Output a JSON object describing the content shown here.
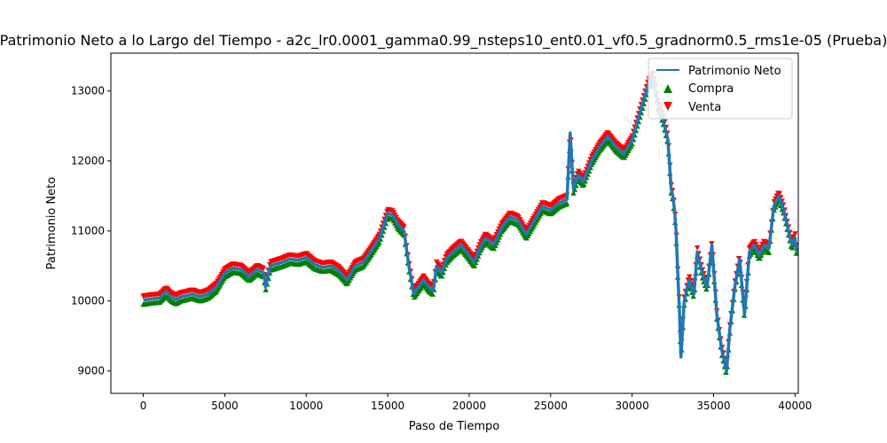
{
  "chart_data": {
    "type": "line",
    "title": "Patrimonio Neto a lo Largo del Tiempo - a2c_lr0.0001_gamma0.99_nsteps10_ent0.01_vf0.5_gradnorm0.5_rms1e-05 (Prueba)",
    "xlabel": "Paso de Tiempo",
    "ylabel": "Patrimonio Neto",
    "xlim": [
      -1990,
      40200
    ],
    "ylim": [
      8680,
      13540
    ],
    "xticks": [
      "0",
      "5000",
      "10000",
      "15000",
      "20000",
      "25000",
      "30000",
      "35000",
      "40000"
    ],
    "yticks": [
      "9000",
      "10000",
      "11000",
      "12000",
      "13000"
    ],
    "legend": {
      "position": "top-right",
      "entries": [
        {
          "label": "Patrimonio Neto",
          "marker": "line",
          "color": "#1f77b4"
        },
        {
          "label": "Compra",
          "marker": "triangle-up",
          "color": "#008000"
        },
        {
          "label": "Venta",
          "marker": "triangle-down",
          "color": "#ff0000"
        }
      ]
    },
    "series": [
      {
        "name": "Patrimonio Neto",
        "color": "#1f77b4",
        "x": [
          0,
          500,
          1000,
          1400,
          1700,
          2000,
          2300,
          2700,
          3000,
          3500,
          4000,
          4500,
          5000,
          5500,
          6000,
          6500,
          7000,
          7400,
          7500,
          7600,
          7800,
          8500,
          9000,
          9500,
          10000,
          10500,
          11000,
          11500,
          12000,
          12500,
          13000,
          13500,
          14000,
          14500,
          15000,
          15300,
          15600,
          16000,
          16300,
          16600,
          16900,
          17200,
          17500,
          17800,
          18000,
          18300,
          18600,
          19000,
          19500,
          20000,
          20300,
          20700,
          21000,
          21500,
          22000,
          22500,
          23000,
          23500,
          24000,
          24500,
          25000,
          25500,
          26000,
          26200,
          26400,
          26700,
          27000,
          27500,
          28000,
          28500,
          29000,
          29500,
          30000,
          30500,
          31000,
          31300,
          31600,
          31900,
          32200,
          32400,
          32500,
          32600,
          32700,
          32800,
          32900,
          33000,
          33200,
          33500,
          33800,
          34000,
          34300,
          34600,
          34900,
          35200,
          35500,
          35800,
          36000,
          36300,
          36600,
          36900,
          37200,
          37500,
          37800,
          38100,
          38400,
          38700,
          39000,
          39300,
          39600,
          39800,
          40000,
          40100
        ],
        "values": [
          10010,
          10030,
          10040,
          10130,
          10060,
          10020,
          10060,
          10080,
          10100,
          10060,
          10100,
          10200,
          10400,
          10470,
          10450,
          10350,
          10450,
          10400,
          10200,
          10300,
          10500,
          10550,
          10600,
          10580,
          10620,
          10520,
          10480,
          10500,
          10430,
          10300,
          10500,
          10550,
          10720,
          10900,
          11250,
          11230,
          11100,
          11000,
          10500,
          10100,
          10200,
          10300,
          10200,
          10150,
          10500,
          10400,
          10600,
          10700,
          10800,
          10650,
          10550,
          10780,
          10900,
          10800,
          11050,
          11200,
          11150,
          10950,
          11150,
          11350,
          11300,
          11400,
          11450,
          12400,
          11600,
          11800,
          11700,
          12000,
          12200,
          12350,
          12200,
          12100,
          12300,
          12700,
          13100,
          13200,
          12800,
          12600,
          12300,
          11600,
          11500,
          11300,
          11000,
          10400,
          9900,
          9200,
          10000,
          10300,
          10100,
          10700,
          10400,
          10200,
          10800,
          9800,
          9300,
          9000,
          9600,
          10200,
          10600,
          9800,
          10700,
          10800,
          10650,
          10800,
          10750,
          11350,
          11500,
          11300,
          11000,
          10800,
          10900,
          10700
        ]
      }
    ]
  }
}
